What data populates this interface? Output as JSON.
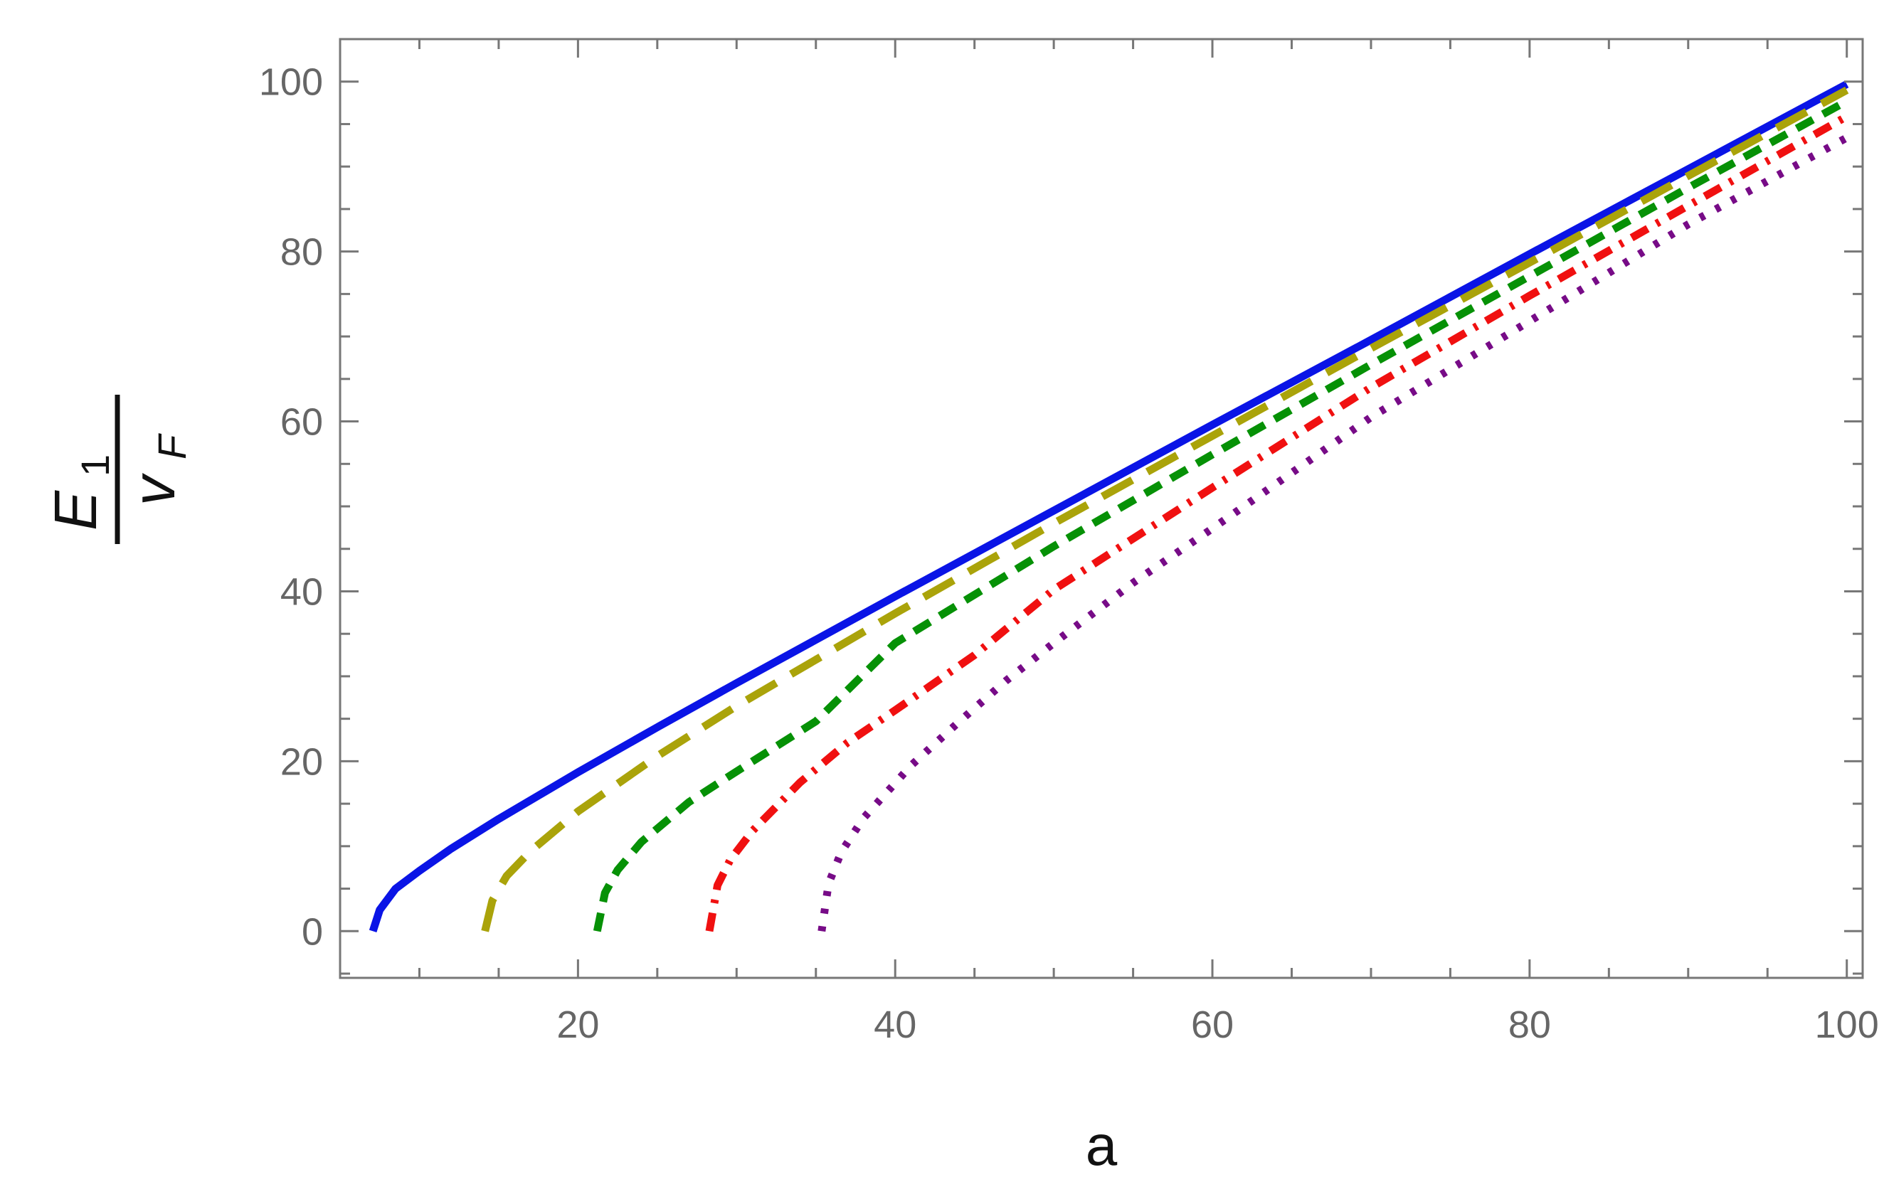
{
  "chart_data": {
    "type": "line",
    "title": "",
    "xlabel": "a",
    "ylabel": {
      "numerator": "E",
      "numerator_subscript": "1",
      "denominator": "v",
      "denominator_subscript": "F"
    },
    "xlim": [
      5,
      101
    ],
    "ylim": [
      -5.5,
      105
    ],
    "xticks": [
      20,
      40,
      60,
      80,
      100
    ],
    "yticks": [
      0,
      20,
      40,
      60,
      80,
      100
    ],
    "x_minor_step": 5,
    "y_minor_step": 5,
    "grid": false,
    "legend": "none",
    "series": [
      {
        "color": "#0a14e6",
        "style": "solid",
        "x": [
          7.07,
          7.5,
          8.5,
          10,
          12,
          15,
          20,
          25,
          30,
          40,
          50,
          60,
          70,
          80,
          90,
          100
        ],
        "y": [
          0,
          2.5,
          5.0,
          7.1,
          9.7,
          13.2,
          18.7,
          24.0,
          29.2,
          39.4,
          49.5,
          59.6,
          69.6,
          79.7,
          89.7,
          99.7
        ]
      },
      {
        "color": "#aaa30a",
        "style": "dashed",
        "x": [
          14.14,
          14.6,
          15.5,
          17,
          20,
          25,
          30,
          40,
          50,
          60,
          70,
          80,
          90,
          100
        ],
        "y": [
          0,
          3.6,
          6.5,
          9.4,
          14.1,
          20.6,
          26.5,
          37.4,
          48.0,
          58.3,
          68.6,
          78.7,
          88.9,
          99.0
        ]
      },
      {
        "color": "#069106",
        "style": "short-dashed",
        "x": [
          21.21,
          21.7,
          22.5,
          24,
          27,
          30,
          35,
          40,
          50,
          60,
          70,
          80,
          90,
          100
        ],
        "y": [
          0,
          4.5,
          7.2,
          10.5,
          15.2,
          18.8,
          24.7,
          33.9,
          45.3,
          56.1,
          66.7,
          77.1,
          87.5,
          97.7
        ]
      },
      {
        "color": "#f01010",
        "style": "dash-dot",
        "x": [
          28.28,
          28.8,
          29.6,
          31,
          34,
          37,
          40,
          45,
          50,
          60,
          70,
          80,
          90,
          100
        ],
        "y": [
          0,
          5.4,
          8.4,
          11.8,
          17.5,
          22.2,
          26.0,
          32.5,
          40.2,
          52.2,
          64.0,
          74.8,
          85.4,
          95.9
        ]
      },
      {
        "color": "#770b87",
        "style": "dotted",
        "x": [
          35.36,
          35.8,
          36.6,
          38,
          41,
          44,
          47,
          50,
          55,
          60,
          70,
          80,
          90,
          100
        ],
        "y": [
          0,
          5.6,
          9.3,
          13.3,
          19.5,
          24.6,
          29.5,
          33.9,
          41.0,
          47.4,
          60.5,
          71.8,
          83.2,
          93.4
        ]
      }
    ]
  }
}
